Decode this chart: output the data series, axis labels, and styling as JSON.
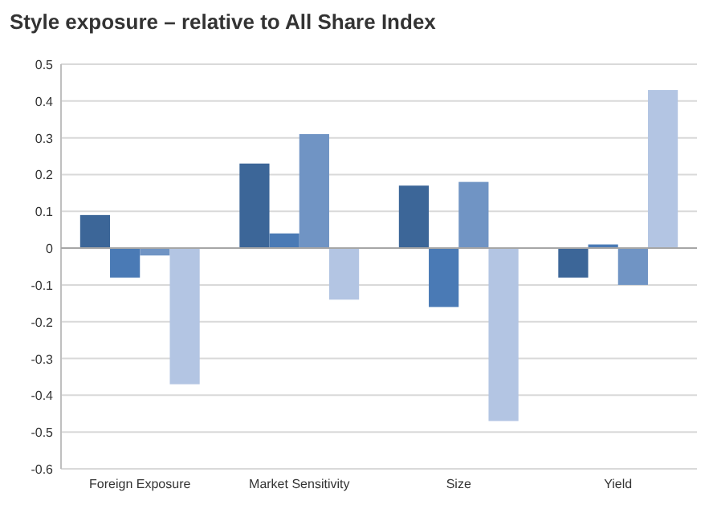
{
  "chart_data": {
    "type": "bar",
    "title": "Style exposure – relative to All Share Index",
    "categories": [
      "Foreign Exposure",
      "Market Sensitivity",
      "Size",
      "Yield"
    ],
    "series": [
      {
        "color": "#3c6698",
        "values": [
          0.09,
          0.23,
          0.17,
          -0.08
        ]
      },
      {
        "color": "#4a7ab5",
        "values": [
          -0.08,
          0.04,
          -0.16,
          0.01
        ]
      },
      {
        "color": "#7094c4",
        "values": [
          -0.02,
          0.31,
          0.18,
          -0.1
        ]
      },
      {
        "color": "#b3c5e3",
        "values": [
          -0.37,
          -0.14,
          -0.47,
          0.43
        ]
      }
    ],
    "ylim": [
      -0.6,
      0.5
    ],
    "yticks": [
      -0.6,
      -0.5,
      -0.4,
      -0.3,
      -0.2,
      -0.1,
      0,
      0.1,
      0.2,
      0.3,
      0.4,
      0.5
    ],
    "grid": "y"
  }
}
